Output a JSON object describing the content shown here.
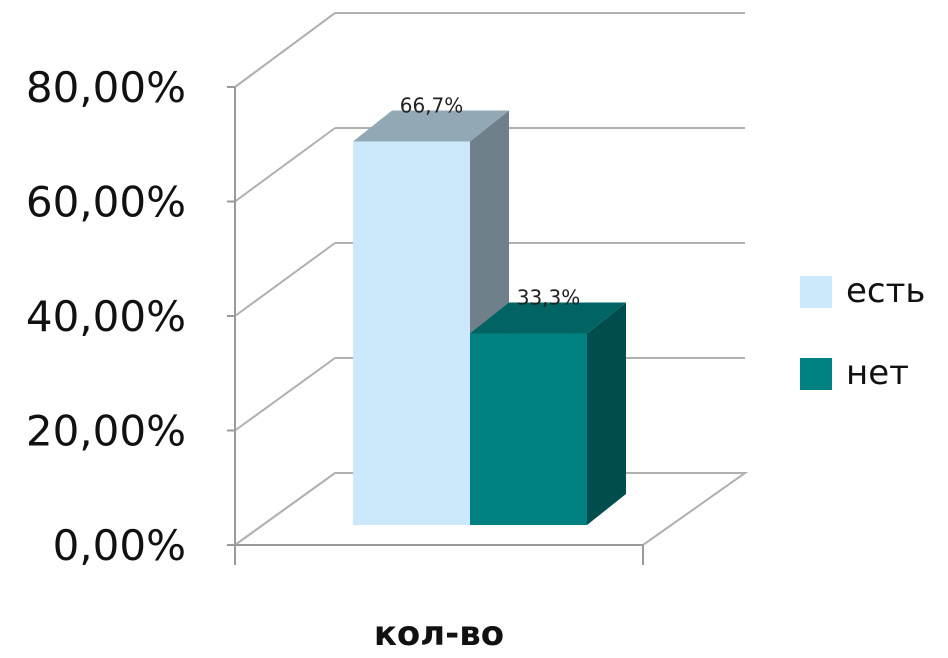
{
  "chart_data": {
    "type": "bar",
    "categories": [
      "кол-во"
    ],
    "series": [
      {
        "name": "есть",
        "values": [
          66.7
        ],
        "label": "66,7%",
        "color": "#cce9fb"
      },
      {
        "name": "нет",
        "values": [
          33.3
        ],
        "label": "33,3%",
        "color": "#008080"
      }
    ],
    "ylim": [
      0,
      80
    ],
    "yticks": [
      {
        "value": 0,
        "label": "0,00%"
      },
      {
        "value": 20,
        "label": "20,00%"
      },
      {
        "value": 40,
        "label": "40,00%"
      },
      {
        "value": 60,
        "label": "60,00%"
      },
      {
        "value": 80,
        "label": "80,00%"
      }
    ],
    "grid": true,
    "style": "3d",
    "legend": "right"
  }
}
